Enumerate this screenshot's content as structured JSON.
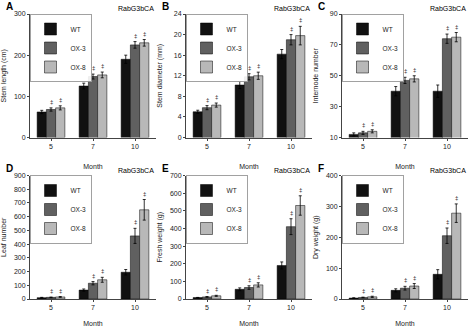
{
  "chart_data": [
    {
      "type": "bar",
      "title": "A",
      "annotations": [
        "RabG3bCA"
      ],
      "categories": [
        "5",
        "7",
        "10"
      ],
      "xlabel": "Month",
      "ylabel": "Stem length (cm)",
      "ylim": [
        0,
        300
      ],
      "yticks": [
        0,
        100,
        200,
        300
      ],
      "grid": false,
      "legend": "upper left",
      "series": [
        {
          "name": "WT",
          "color": "#111111",
          "values": [
            62,
            125,
            190
          ],
          "errors": [
            4,
            7,
            10
          ]
        },
        {
          "name": "OX-3",
          "color": "#606060",
          "values": [
            68,
            148,
            225
          ],
          "errors": [
            4,
            6,
            8
          ],
          "annotations": [
            "‡",
            "‡",
            "‡"
          ]
        },
        {
          "name": "OX-8",
          "color": "#b8b8b8",
          "values": [
            72,
            152,
            230
          ],
          "errors": [
            5,
            7,
            8
          ],
          "annotations": [
            "‡",
            "‡",
            "‡"
          ]
        }
      ]
    },
    {
      "type": "bar",
      "title": "B",
      "annotations": [
        "RabG3bCA"
      ],
      "categories": [
        "5",
        "7",
        "10"
      ],
      "xlabel": "Month",
      "ylabel": "Stem diameter (mm)",
      "ylim": [
        0,
        24
      ],
      "yticks": [
        0,
        4,
        8,
        12,
        16,
        20,
        24
      ],
      "grid": false,
      "legend": "upper left",
      "series": [
        {
          "name": "WT",
          "color": "#111111",
          "values": [
            5.0,
            10.2,
            16.2
          ],
          "errors": [
            0.3,
            0.7,
            0.9
          ]
        },
        {
          "name": "OX-3",
          "color": "#606060",
          "values": [
            5.8,
            11.8,
            19.0
          ],
          "errors": [
            0.4,
            0.6,
            1.0
          ],
          "annotations": [
            "‡",
            "‡",
            "‡"
          ]
        },
        {
          "name": "OX-8",
          "color": "#b8b8b8",
          "values": [
            6.3,
            12.0,
            19.8
          ],
          "errors": [
            0.4,
            0.7,
            1.8
          ],
          "annotations": [
            "‡",
            "‡",
            "‡"
          ]
        }
      ]
    },
    {
      "type": "bar",
      "title": "C",
      "annotations": [
        "RabG3bCA"
      ],
      "categories": [
        "5",
        "7",
        "10"
      ],
      "xlabel": "Month",
      "ylabel": "Internode number",
      "ylim": [
        10,
        90
      ],
      "yticks": [
        10,
        30,
        50,
        70,
        90
      ],
      "grid": false,
      "legend": "upper left",
      "series": [
        {
          "name": "WT",
          "color": "#111111",
          "values": [
            12,
            40,
            40
          ],
          "errors": [
            1,
            3,
            4
          ]
        },
        {
          "name": "OX-3",
          "color": "#606060",
          "values": [
            13,
            47,
            74
          ],
          "errors": [
            1,
            2,
            3
          ],
          "annotations": [
            "‡",
            "‡",
            "‡"
          ]
        },
        {
          "name": "OX-8",
          "color": "#b8b8b8",
          "values": [
            14,
            48,
            75
          ],
          "errors": [
            1,
            2,
            3
          ],
          "annotations": [
            "‡",
            "‡",
            "‡"
          ]
        }
      ]
    },
    {
      "type": "bar",
      "title": "D",
      "annotations": [
        "RabG3bCA"
      ],
      "categories": [
        "5",
        "7",
        "10"
      ],
      "xlabel": "Month",
      "ylabel": "Leaf number",
      "ylim": [
        0,
        900
      ],
      "yticks": [
        0,
        100,
        200,
        300,
        400,
        500,
        600,
        700,
        800,
        900
      ],
      "grid": false,
      "legend": "upper left",
      "series": [
        {
          "name": "WT",
          "color": "#111111",
          "values": [
            10,
            65,
            195
          ],
          "errors": [
            2,
            8,
            20
          ]
        },
        {
          "name": "OX-3",
          "color": "#606060",
          "values": [
            12,
            115,
            460
          ],
          "errors": [
            2,
            12,
            55
          ],
          "annotations": [
            "‡",
            "‡",
            "‡"
          ]
        },
        {
          "name": "OX-8",
          "color": "#b8b8b8",
          "values": [
            15,
            140,
            650
          ],
          "errors": [
            3,
            18,
            75
          ],
          "annotations": [
            "‡",
            "‡",
            "‡"
          ]
        }
      ]
    },
    {
      "type": "bar",
      "title": "E",
      "annotations": [
        "RabG3bCA"
      ],
      "categories": [
        "5",
        "7",
        "10"
      ],
      "xlabel": "Month",
      "ylabel": "Fresh weight (g)",
      "ylim": [
        0,
        700
      ],
      "yticks": [
        0,
        100,
        200,
        300,
        400,
        500,
        600,
        700
      ],
      "grid": false,
      "legend": "upper left",
      "series": [
        {
          "name": "WT",
          "color": "#111111",
          "values": [
            8,
            55,
            190
          ],
          "errors": [
            1,
            8,
            20
          ]
        },
        {
          "name": "OX-3",
          "color": "#606060",
          "values": [
            12,
            65,
            410
          ],
          "errors": [
            2,
            10,
            45
          ],
          "annotations": [
            "‡",
            "‡",
            "‡"
          ]
        },
        {
          "name": "OX-8",
          "color": "#b8b8b8",
          "values": [
            18,
            80,
            530
          ],
          "errors": [
            3,
            12,
            55
          ],
          "annotations": [
            "‡",
            "‡",
            "‡"
          ]
        }
      ]
    },
    {
      "type": "bar",
      "title": "F",
      "annotations": [
        "RabG3bCA"
      ],
      "categories": [
        "5",
        "7",
        "10"
      ],
      "xlabel": "Month",
      "ylabel": "Dry weight (g)",
      "ylim": [
        0,
        400
      ],
      "yticks": [
        0,
        100,
        200,
        300,
        400
      ],
      "grid": false,
      "legend": "upper left",
      "series": [
        {
          "name": "WT",
          "color": "#111111",
          "values": [
            3,
            28,
            80
          ],
          "errors": [
            1,
            5,
            15
          ]
        },
        {
          "name": "OX-3",
          "color": "#606060",
          "values": [
            5,
            35,
            205
          ],
          "errors": [
            1,
            6,
            25
          ],
          "annotations": [
            "‡",
            "‡",
            "‡"
          ]
        },
        {
          "name": "OX-8",
          "color": "#b8b8b8",
          "values": [
            7,
            42,
            278
          ],
          "errors": [
            2,
            8,
            30
          ],
          "annotations": [
            "‡",
            "‡",
            "‡"
          ]
        }
      ]
    }
  ]
}
